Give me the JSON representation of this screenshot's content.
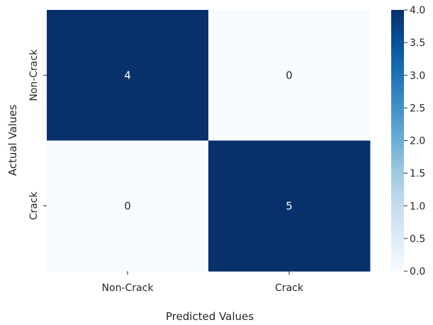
{
  "chart_data": {
    "type": "heatmap",
    "title": "",
    "xlabel": "Predicted Values",
    "ylabel": "Actual Values",
    "x_categories": [
      "Non-Crack",
      "Crack"
    ],
    "y_categories": [
      "Non-Crack",
      "Crack"
    ],
    "values": [
      [
        4,
        0
      ],
      [
        0,
        5
      ]
    ],
    "colorbar": {
      "range": [
        0,
        4
      ],
      "ticks": [
        "0.0",
        "0.5",
        "1.0",
        "1.5",
        "2.0",
        "2.5",
        "3.0",
        "3.5",
        "4.0"
      ]
    },
    "colormap": "Blues",
    "colors": {
      "low": "#f7fbff",
      "high": "#08306b",
      "light_text": "#ffffff",
      "dark_text": "#262626"
    }
  }
}
